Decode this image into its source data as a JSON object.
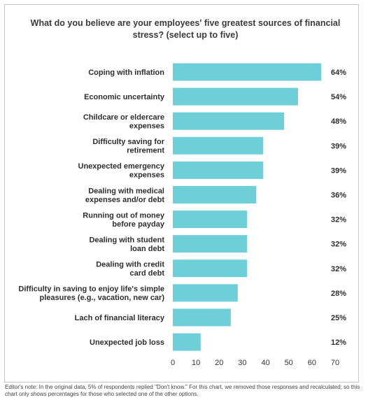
{
  "chart_data": {
    "type": "bar",
    "orientation": "horizontal",
    "title": "What do you believe are your employees' five greatest sources of financial stress? (select up to five)",
    "categories": [
      [
        "Coping with inflation"
      ],
      [
        "Economic uncertainty"
      ],
      [
        "Childcare or eldercare",
        "expenses"
      ],
      [
        "Difficulty saving for",
        "retirement"
      ],
      [
        "Unexpected emergency",
        "expenses"
      ],
      [
        "Dealing with medical",
        "expenses and/or debt"
      ],
      [
        "Running out of money",
        "before payday"
      ],
      [
        "Dealing with student",
        "loan debt"
      ],
      [
        "Dealing with credit",
        "card debt"
      ],
      [
        "Difficulty in saving to enjoy life's simple",
        "pleasures (e.g., vacation, new car)"
      ],
      [
        "Lach of financial literacy"
      ],
      [
        "Unexpected job loss"
      ]
    ],
    "values": [
      64,
      54,
      48,
      39,
      39,
      36,
      32,
      32,
      32,
      28,
      25,
      12
    ],
    "value_labels": [
      "64%",
      "54%",
      "48%",
      "39%",
      "39%",
      "36%",
      "32%",
      "32%",
      "32%",
      "28%",
      "25%",
      "12%"
    ],
    "xlim": [
      0,
      70
    ],
    "xticks": [
      0,
      10,
      20,
      30,
      40,
      50,
      60,
      70
    ],
    "bar_color": "#6fcfd9",
    "grid": false
  },
  "footnote": "Editor's note: In the original data, 5% of respondents replied \"Don't know.\" For this chart, we removed those responses and recalculated; so this chart only shows percentages for those who selected one of the other options."
}
